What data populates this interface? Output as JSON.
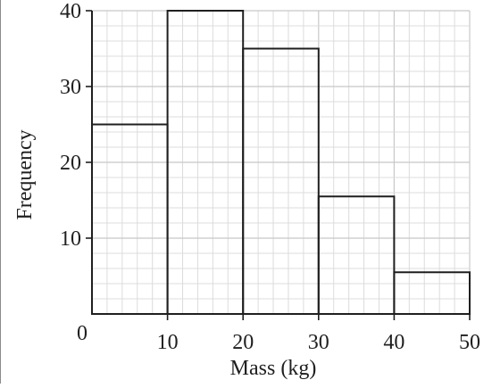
{
  "chart_data": {
    "type": "bar",
    "subtype": "histogram",
    "x_bins": [
      [
        0,
        10
      ],
      [
        10,
        20
      ],
      [
        20,
        30
      ],
      [
        30,
        40
      ],
      [
        40,
        50
      ]
    ],
    "values": [
      25,
      40,
      35,
      15.5,
      5.5
    ],
    "xlabel": "Mass (kg)",
    "ylabel": "Frequency",
    "xlim": [
      0,
      50
    ],
    "ylim": [
      0,
      40
    ],
    "x_ticks": [
      0,
      10,
      20,
      30,
      40,
      50
    ],
    "x_tick_labels": [
      "0",
      "10",
      "20",
      "30",
      "40",
      "50"
    ],
    "y_ticks": [
      10,
      20,
      30,
      40
    ],
    "y_tick_labels": [
      "10",
      "20",
      "30",
      "40"
    ],
    "grid": true,
    "grid_minor_step_x": 2,
    "grid_minor_step_y": 2,
    "grid_major_step_x": 10,
    "grid_major_step_y": 10,
    "colors": {
      "bar_fill": "#ffffff",
      "bar_stroke": "#1f1f1f",
      "grid_minor": "#dcdcdc",
      "grid_major": "#c8c8c8",
      "axis": "#1f1f1f"
    }
  }
}
